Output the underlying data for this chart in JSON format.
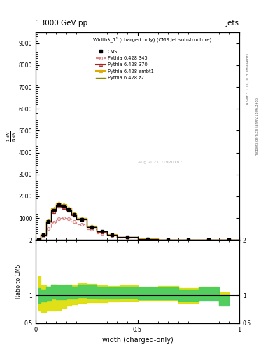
{
  "title_top_left": "13000 GeV pp",
  "title_top_right": "Jets",
  "plot_title": "Widthλ_1¹ (charged only) (CMS jet substructure)",
  "xlabel": "width (charged-only)",
  "ylabel_ratio": "Ratio to CMS",
  "right_label1": "Rivet 3.1.10, ≥ 3.3M events",
  "right_label2": "mcplots.cern.ch [arXiv:1306.3436]",
  "watermark": "Aug 2021  I1920187",
  "x_bins": [
    0.0,
    0.025,
    0.05,
    0.075,
    0.1,
    0.125,
    0.15,
    0.175,
    0.2,
    0.25,
    0.3,
    0.35,
    0.4,
    0.5,
    0.6,
    0.7,
    0.8,
    0.9,
    1.0
  ],
  "cms_values": [
    0.0,
    2.5,
    8.5,
    13.5,
    16.0,
    15.5,
    14.0,
    11.5,
    9.5,
    6.0,
    3.8,
    2.4,
    1.4,
    0.58,
    0.22,
    0.09,
    0.035,
    0.012
  ],
  "p345_values": [
    0.0,
    1.6,
    5.2,
    8.0,
    9.8,
    10.2,
    9.8,
    8.5,
    7.2,
    4.8,
    3.1,
    1.9,
    1.15,
    0.5,
    0.2,
    0.085,
    0.033,
    0.011
  ],
  "p370_values": [
    0.0,
    2.5,
    8.3,
    13.0,
    15.5,
    15.0,
    13.5,
    11.3,
    9.3,
    5.9,
    3.75,
    2.35,
    1.38,
    0.57,
    0.22,
    0.09,
    0.035,
    0.012
  ],
  "pambt1_values": [
    0.0,
    2.7,
    9.2,
    14.5,
    17.0,
    16.5,
    14.8,
    12.3,
    10.2,
    6.5,
    4.1,
    2.55,
    1.5,
    0.62,
    0.24,
    0.1,
    0.038,
    0.013
  ],
  "pz2_values": [
    0.0,
    2.6,
    8.9,
    14.0,
    16.5,
    16.0,
    14.4,
    12.0,
    9.9,
    6.3,
    3.98,
    2.48,
    1.45,
    0.6,
    0.23,
    0.095,
    0.037,
    0.013
  ],
  "yellow_lo": [
    0.72,
    0.7,
    0.73,
    0.73,
    0.74,
    0.78,
    0.82,
    0.84,
    0.86,
    0.88,
    0.88,
    0.89,
    0.9,
    0.92,
    0.92,
    0.87,
    0.93,
    0.84
  ],
  "yellow_hi": [
    1.35,
    1.18,
    1.16,
    1.2,
    1.2,
    1.19,
    1.2,
    1.18,
    1.22,
    1.21,
    1.18,
    1.17,
    1.18,
    1.16,
    1.17,
    1.13,
    1.16,
    1.06
  ],
  "green_lo": [
    0.87,
    0.89,
    0.92,
    0.94,
    0.93,
    0.93,
    0.94,
    0.94,
    0.96,
    0.95,
    0.94,
    0.94,
    0.95,
    0.93,
    0.93,
    0.9,
    0.92,
    0.82
  ],
  "green_hi": [
    1.13,
    1.11,
    1.15,
    1.19,
    1.18,
    1.18,
    1.18,
    1.16,
    1.2,
    1.19,
    1.15,
    1.14,
    1.16,
    1.14,
    1.14,
    1.1,
    1.14,
    1.01
  ],
  "color_cms": "#000000",
  "color_345": "#dd8888",
  "color_370": "#aa2222",
  "color_ambt1": "#ddaa00",
  "color_z2": "#888800",
  "color_green_band": "#44cc66",
  "color_yellow_band": "#dddd00",
  "ylim_ratio": [
    0.5,
    2.0
  ],
  "xlim": [
    0.0,
    1.0
  ],
  "yticks_main": [
    1000,
    2000,
    3000,
    4000,
    5000,
    6000,
    7000,
    8000,
    9000
  ],
  "ylim_main_max": 9500
}
